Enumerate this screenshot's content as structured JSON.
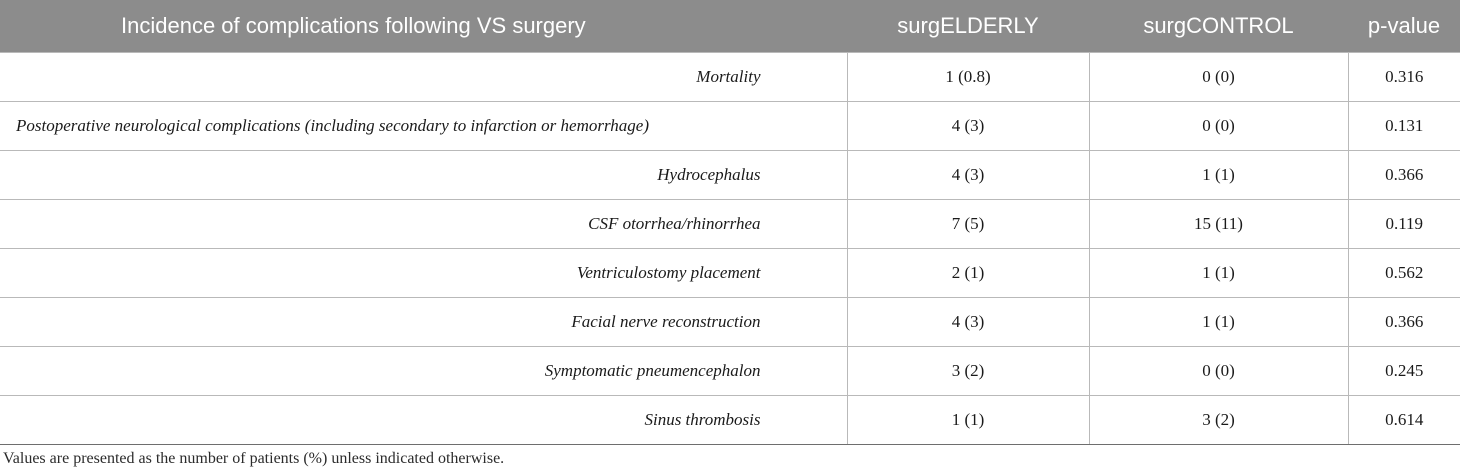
{
  "table": {
    "headers": [
      "Incidence of complications following VS surgery",
      "surgELDERLY",
      "surgCONTROL",
      "p-value"
    ],
    "rows": [
      [
        "Mortality",
        "1 (0.8)",
        "0 (0)",
        "0.316"
      ],
      [
        "Postoperative neurological complications (including secondary to infarction or hemorrhage)",
        "4 (3)",
        "0 (0)",
        "0.131"
      ],
      [
        "Hydrocephalus",
        "4 (3)",
        "1 (1)",
        "0.366"
      ],
      [
        "CSF otorrhea/rhinorrhea",
        "7 (5)",
        "15 (11)",
        "0.119"
      ],
      [
        "Ventriculostomy placement",
        "2 (1)",
        "1 (1)",
        "0.562"
      ],
      [
        "Facial nerve reconstruction",
        "4 (3)",
        "1 (1)",
        "0.366"
      ],
      [
        "Symptomatic pneumencephalon",
        "3 (2)",
        "0 (0)",
        "0.245"
      ],
      [
        "Sinus thrombosis",
        "1 (1)",
        "3 (2)",
        "0.614"
      ]
    ]
  },
  "footnote": "Values are presented as the number of patients (%) unless indicated otherwise."
}
